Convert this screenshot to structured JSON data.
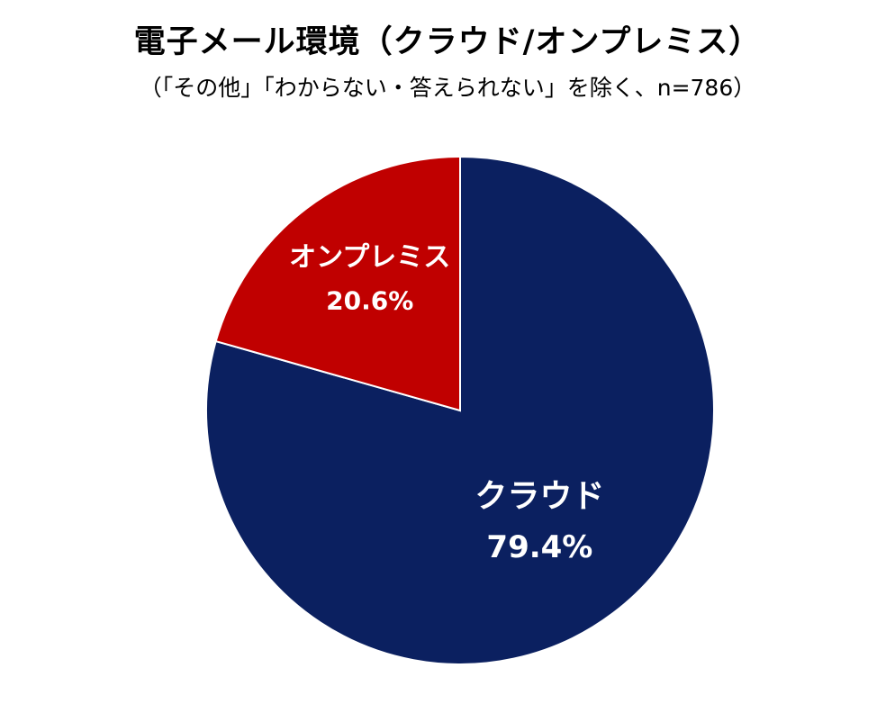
{
  "chart_data": {
    "type": "pie",
    "title": "電子メール環境（クラウド/オンプレミス）",
    "subtitle": "（「その他」「わからない・答えられない」を除く、n=786）",
    "slices": [
      {
        "label": "クラウド",
        "value": 79.4,
        "value_label": "79.4%",
        "color": "#0b2060"
      },
      {
        "label": "オンプレミス",
        "value": 20.6,
        "value_label": "20.6%",
        "color": "#c00000"
      }
    ],
    "start": "12 o'clock",
    "direction": "clockwise",
    "legend": "none"
  }
}
